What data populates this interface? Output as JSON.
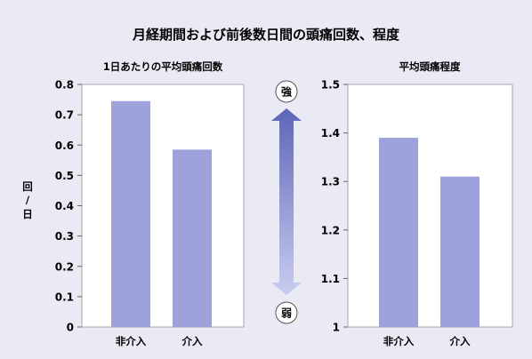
{
  "title": "月経期間および前後数日間の頭痛回数、程度",
  "colors": {
    "background": "#e9eaf4",
    "bar": "#9ea2da",
    "axis_box": "#a7a7a7",
    "arrow_top": "#5d66b8",
    "arrow_bottom": "#c9ccf0"
  },
  "indicator": {
    "strong": "強",
    "weak": "弱"
  },
  "chart_data": [
    {
      "type": "bar",
      "title": "1日あたりの平均頭痛回数",
      "ylabel": "回/日",
      "ylabel_chars": [
        "回",
        "/",
        "日"
      ],
      "categories": [
        "非介入",
        "介入"
      ],
      "values": [
        0.745,
        0.585
      ],
      "ylim": [
        0,
        0.8
      ],
      "yticks": [
        0,
        0.1,
        0.2,
        0.3,
        0.4,
        0.5,
        0.6,
        0.7,
        0.8
      ],
      "ytick_labels": [
        "0",
        "0.1",
        "0.2",
        "0.3",
        "0.4",
        "0.5",
        "0.6",
        "0.7",
        "0.8"
      ]
    },
    {
      "type": "bar",
      "title": "平均頭痛程度",
      "ylabel": "",
      "categories": [
        "非介入",
        "介入"
      ],
      "values": [
        1.39,
        1.31
      ],
      "ylim": [
        1,
        1.5
      ],
      "yticks": [
        1,
        1.1,
        1.2,
        1.3,
        1.4,
        1.5
      ],
      "ytick_labels": [
        "1",
        "1.1",
        "1.2",
        "1.3",
        "1.4",
        "1.5"
      ]
    }
  ]
}
